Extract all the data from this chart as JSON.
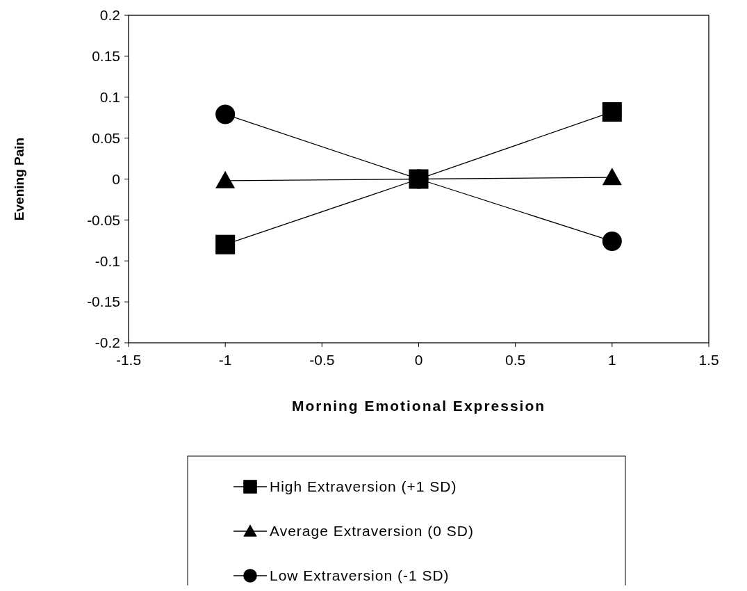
{
  "chart_data": {
    "type": "line",
    "xlabel": "Morning Emotional Expression",
    "ylabel": "Evening Pain",
    "x": [
      -1,
      0,
      1
    ],
    "series": [
      {
        "name": "High Extraversion (+1 SD)",
        "color": "#000000",
        "marker": "square",
        "values": [
          -0.08,
          0,
          0.082
        ]
      },
      {
        "name": "Average Extraversion (0 SD)",
        "color": "#000000",
        "marker": "triangle",
        "values": [
          -0.002,
          0,
          0.002
        ]
      },
      {
        "name": "Low Extraversion (-1 SD)",
        "color": "#000000",
        "marker": "circle",
        "values": [
          0.079,
          0,
          -0.076
        ]
      }
    ],
    "xlim": [
      -1.5,
      1.5
    ],
    "xticks": [
      -1.5,
      -1,
      -0.5,
      0,
      0.5,
      1,
      1.5
    ],
    "ylim": [
      -0.2,
      0.2
    ],
    "yticks": [
      -0.2,
      -0.15,
      -0.1,
      -0.05,
      0,
      0.05,
      0.1,
      0.15,
      0.2
    ],
    "grid": false,
    "legend": "bottom",
    "line_style": "solid"
  }
}
